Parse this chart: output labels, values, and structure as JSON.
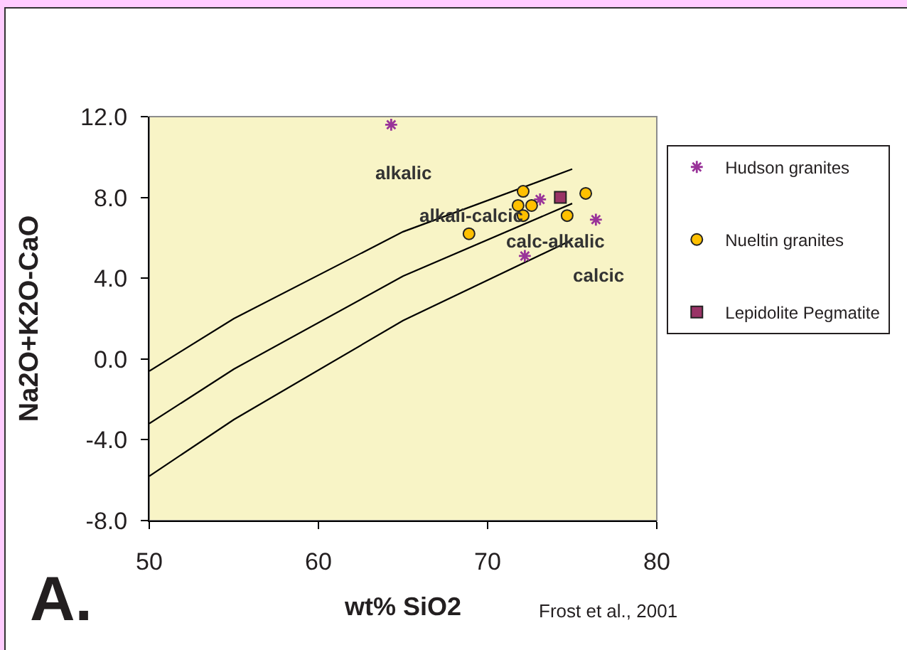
{
  "chart_data": {
    "type": "scatter",
    "xlabel": "wt% SiO2",
    "ylabel": "Na2O+K2O-CaO",
    "xlim": [
      50,
      80
    ],
    "xticks": [
      50,
      60,
      70,
      80
    ],
    "ylim": [
      -8,
      12
    ],
    "yticks": [
      {
        "value": -8,
        "label": "-8.0"
      },
      {
        "value": -4,
        "label": "-4.0"
      },
      {
        "value": 0,
        "label": "0.0"
      },
      {
        "value": 4,
        "label": "4.0"
      },
      {
        "value": 8,
        "label": "8.0"
      },
      {
        "value": 12,
        "label": "12.0"
      }
    ],
    "legend": "right",
    "annotations": [
      "alkalic",
      "alkali-calcic",
      "calc-alkalic",
      "calcic",
      "A.",
      "Frost et al., 2001"
    ],
    "series": [
      {
        "name": "Hudson granites",
        "color": "#993399",
        "marker": "cross",
        "x": [
          64.3,
          73.1,
          76.4,
          72.2
        ],
        "values": [
          11.6,
          7.9,
          6.9,
          5.1
        ]
      },
      {
        "name": "Nueltin granites",
        "color": "#ffc000",
        "marker": "circle",
        "x": [
          72.1,
          71.8,
          72.6,
          72.1,
          75.8,
          74.7,
          68.9
        ],
        "values": [
          8.3,
          7.6,
          7.6,
          7.1,
          8.2,
          7.1,
          6.2
        ]
      },
      {
        "name": "Lepidolite Pegmatite",
        "color": "#993366",
        "marker": "square",
        "x": [
          74.3
        ],
        "values": [
          8.0
        ]
      },
      {
        "type": "line",
        "color": "#000000",
        "marker": "none",
        "x": [
          50,
          55,
          65,
          75
        ],
        "values": [
          -0.6,
          2.0,
          6.3,
          9.4
        ]
      },
      {
        "type": "line",
        "color": "#000000",
        "marker": "none",
        "x": [
          50,
          55,
          65,
          75
        ],
        "values": [
          -3.2,
          -0.5,
          4.1,
          7.7
        ]
      },
      {
        "type": "line",
        "color": "#000000",
        "marker": "none",
        "x": [
          50,
          55,
          65,
          75
        ],
        "values": [
          -5.8,
          -3.0,
          1.9,
          5.9
        ]
      }
    ]
  }
}
